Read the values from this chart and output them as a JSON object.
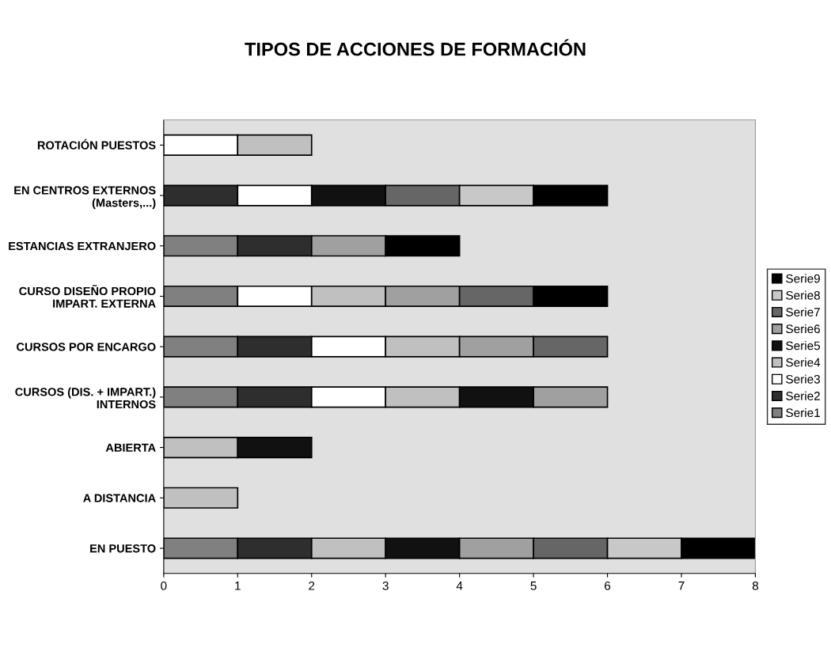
{
  "chart_data": {
    "type": "bar",
    "orientation": "horizontal",
    "stacked": true,
    "title": "TIPOS DE ACCIONES DE FORMACIÓN",
    "categories": [
      "ROTACIÓN PUESTOS",
      "EN CENTROS EXTERNOS\n(Masters,...)",
      "ESTANCIAS EXTRANJERO",
      "CURSO DISEÑO PROPIO\nIMPART. EXTERNA",
      "CURSOS POR ENCARGO",
      "CURSOS (DIS. + IMPART.)\nINTERNOS",
      "ABIERTA",
      "A DISTANCIA",
      "EN PUESTO"
    ],
    "series": [
      {
        "name": "Serie1",
        "color": "#808080",
        "values": [
          null,
          null,
          1,
          1,
          1,
          1,
          null,
          null,
          1
        ]
      },
      {
        "name": "Serie2",
        "color": "#2e2e2e",
        "values": [
          null,
          1,
          1,
          null,
          1,
          1,
          null,
          null,
          1
        ]
      },
      {
        "name": "Serie3",
        "color": "#ffffff",
        "values": [
          1,
          1,
          null,
          1,
          1,
          1,
          null,
          null,
          null
        ]
      },
      {
        "name": "Serie4",
        "color": "#c0c0c0",
        "values": [
          1,
          null,
          null,
          1,
          1,
          1,
          1,
          1,
          1
        ]
      },
      {
        "name": "Serie5",
        "color": "#111111",
        "values": [
          null,
          1,
          null,
          null,
          null,
          1,
          1,
          null,
          1
        ]
      },
      {
        "name": "Serie6",
        "color": "#a0a0a0",
        "values": [
          null,
          null,
          1,
          1,
          1,
          1,
          null,
          null,
          1
        ]
      },
      {
        "name": "Serie7",
        "color": "#666666",
        "values": [
          null,
          1,
          null,
          1,
          1,
          null,
          null,
          null,
          1
        ]
      },
      {
        "name": "Serie8",
        "color": "#c8c8c8",
        "values": [
          null,
          1,
          null,
          null,
          null,
          null,
          null,
          null,
          1
        ]
      },
      {
        "name": "Serie9",
        "color": "#000000",
        "values": [
          null,
          1,
          1,
          1,
          null,
          null,
          null,
          null,
          1
        ]
      }
    ],
    "xlim": [
      0,
      8
    ],
    "xticks": [
      0,
      1,
      2,
      3,
      4,
      5,
      6,
      7,
      8
    ],
    "grid": false,
    "legend": "right"
  }
}
